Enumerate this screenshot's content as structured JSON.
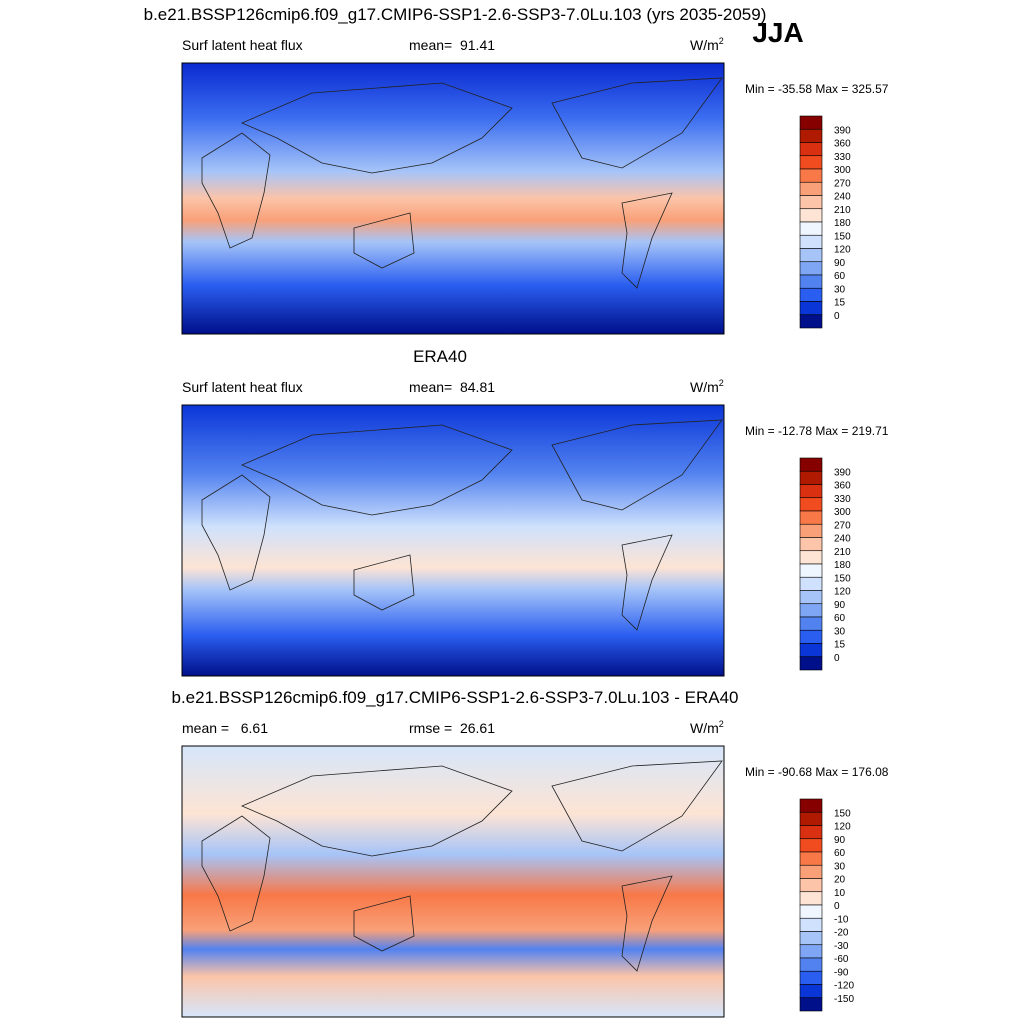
{
  "header": {
    "season": "JJA"
  },
  "panels": [
    {
      "title": "b.e21.BSSP126cmip6.f09_g17.CMIP6-SSP1-2.6-SSP3-7.0Lu.103 (yrs 2035-2059)",
      "left": "Surf latent heat flux",
      "center": "mean=  91.41",
      "unit": "W/m",
      "unit_sup": "2",
      "minmax": "Min = -35.58 Max = 325.57",
      "colorbar_labels": [
        "390",
        "360",
        "330",
        "300",
        "270",
        "240",
        "210",
        "180",
        "150",
        "120",
        "90",
        "60",
        "30",
        "15",
        "0"
      ],
      "colorbar_colors": [
        "#870000",
        "#b01a00",
        "#d83010",
        "#f04c20",
        "#f87848",
        "#f9a078",
        "#fcc4a8",
        "#fde4d4",
        "#f0f6ff",
        "#cfe1fc",
        "#a6c4f8",
        "#7ea6f5",
        "#5282f0",
        "#2a5ef0",
        "#0a36d8",
        "#000f8a"
      ]
    },
    {
      "title": "ERA40",
      "left": "Surf latent heat flux",
      "center": "mean=  84.81",
      "unit": "W/m",
      "unit_sup": "2",
      "minmax": "Min = -12.78 Max = 219.71",
      "colorbar_labels": [
        "390",
        "360",
        "330",
        "300",
        "270",
        "240",
        "210",
        "180",
        "150",
        "120",
        "90",
        "60",
        "30",
        "15",
        "0"
      ],
      "colorbar_colors": [
        "#870000",
        "#b01a00",
        "#d83010",
        "#f04c20",
        "#f87848",
        "#f9a078",
        "#fcc4a8",
        "#fde4d4",
        "#f0f6ff",
        "#cfe1fc",
        "#a6c4f8",
        "#7ea6f5",
        "#5282f0",
        "#2a5ef0",
        "#0a36d8",
        "#000f8a"
      ]
    },
    {
      "title": "b.e21.BSSP126cmip6.f09_g17.CMIP6-SSP1-2.6-SSP3-7.0Lu.103 - ERA40",
      "left": "mean =   6.61",
      "center": "rmse =  26.61",
      "unit": "W/m",
      "unit_sup": "2",
      "minmax": "Min = -90.68 Max = 176.08",
      "colorbar_labels": [
        "150",
        "120",
        "90",
        "60",
        "30",
        "20",
        "10",
        "0",
        "-10",
        "-20",
        "-30",
        "-60",
        "-90",
        "-120",
        "-150"
      ],
      "colorbar_colors": [
        "#870000",
        "#b01a00",
        "#d83010",
        "#f04c20",
        "#f87848",
        "#f9a078",
        "#fcc4a8",
        "#fde4d4",
        "#f0f6ff",
        "#cfe1fc",
        "#a6c4f8",
        "#7ea6f5",
        "#5282f0",
        "#2a5ef0",
        "#0a36d8",
        "#000f8a"
      ]
    }
  ]
}
